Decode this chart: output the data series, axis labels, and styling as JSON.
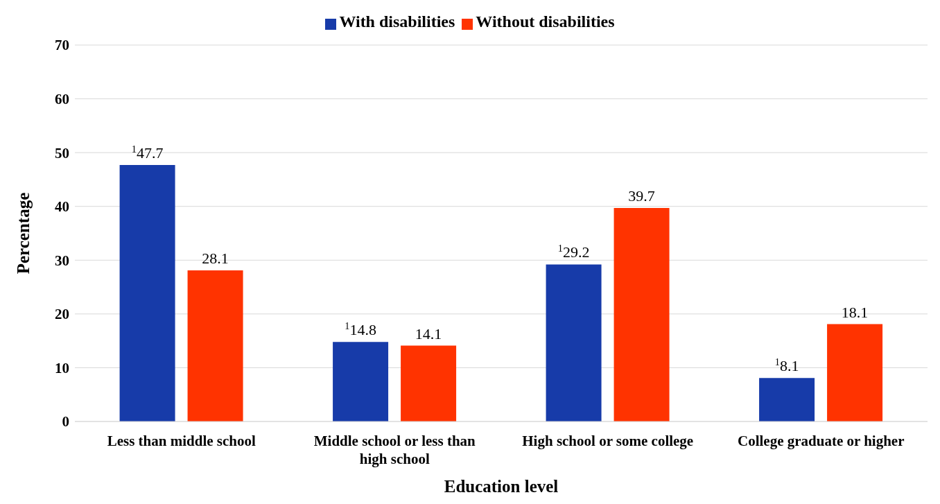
{
  "chart_data": {
    "type": "bar",
    "xlabel": "Education level",
    "ylabel": "Percentage",
    "categories": [
      "Less than middle school",
      "Middle school or less than high school",
      "High school or some college",
      "College graduate or higher"
    ],
    "series": [
      {
        "name": "With disabilities",
        "color": "#173ba9",
        "values": [
          47.7,
          14.8,
          29.2,
          8.1
        ],
        "value_labels": [
          "$^{1}$47.7",
          "$^{1}$14.8",
          "$^{1}$29.2",
          "$^{1}$8.1"
        ]
      },
      {
        "name": "Without disabilities",
        "color": "#ff3300",
        "values": [
          28.1,
          14.1,
          39.7,
          18.1
        ],
        "value_labels": [
          "28.1",
          "14.1",
          "39.7",
          "18.1"
        ]
      }
    ],
    "ylim": [
      0,
      70
    ],
    "yticks": [
      0,
      10,
      20,
      30,
      40,
      50,
      60,
      70
    ],
    "grid": "y",
    "legend": "top"
  }
}
